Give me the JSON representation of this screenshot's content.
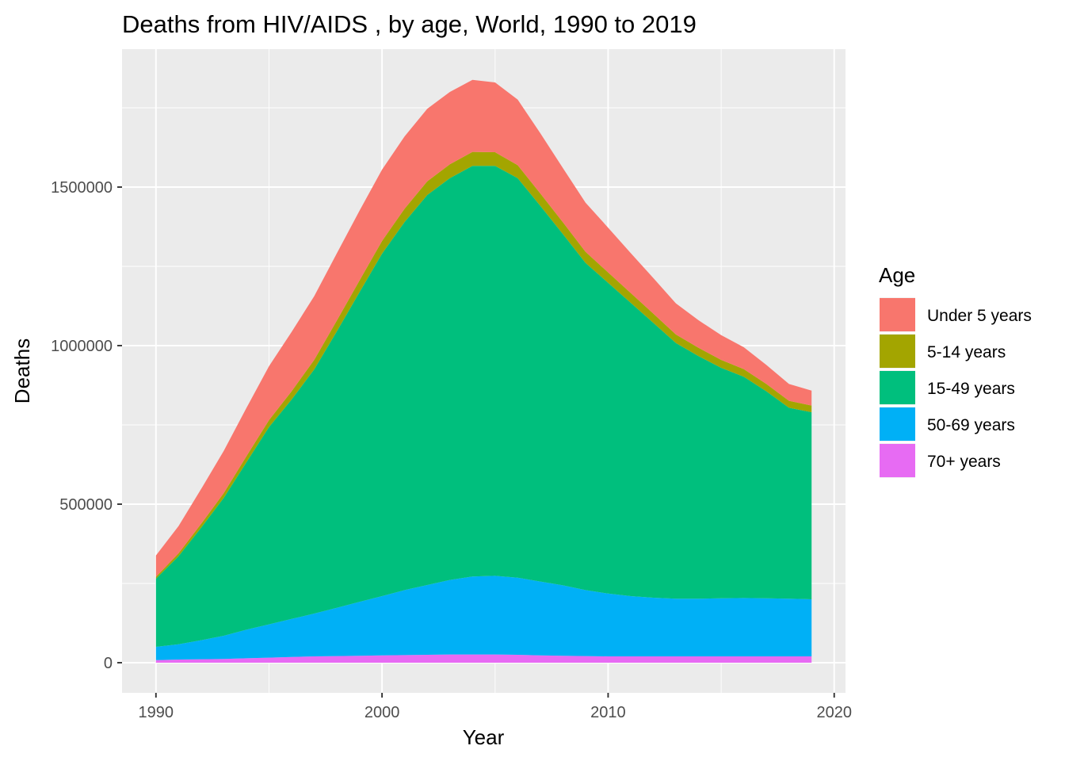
{
  "chart_data": {
    "type": "area",
    "stacked": true,
    "title": "Deaths from HIV/AIDS , by age, World, 1990 to 2019",
    "xlabel": "Year",
    "ylabel": "Deaths",
    "xlim": [
      1988.5,
      2020.5
    ],
    "ylim": [
      -95000,
      1935000
    ],
    "x_ticks": [
      1990,
      2000,
      2010,
      2020
    ],
    "y_ticks": [
      0,
      500000,
      1000000,
      1500000
    ],
    "x_tick_labels": [
      "1990",
      "2000",
      "2010",
      "2020"
    ],
    "y_tick_labels": [
      "0",
      "500000",
      "1000000",
      "1500000"
    ],
    "grid": true,
    "legend_position": "right",
    "legend_title": "Age",
    "x": [
      1990,
      1991,
      1992,
      1993,
      1994,
      1995,
      1996,
      1997,
      1998,
      1999,
      2000,
      2001,
      2002,
      2003,
      2004,
      2005,
      2006,
      2007,
      2008,
      2009,
      2010,
      2011,
      2012,
      2013,
      2014,
      2015,
      2016,
      2017,
      2018,
      2019
    ],
    "series": [
      {
        "name": "70+ years",
        "color": "#E76BF3",
        "values": [
          8000,
          10000,
          11000,
          12000,
          14000,
          16000,
          18000,
          20000,
          21000,
          22000,
          23000,
          24000,
          25000,
          26000,
          26000,
          26000,
          25000,
          23000,
          22000,
          21000,
          20000,
          20000,
          20000,
          20000,
          20000,
          20000,
          20000,
          20000,
          20000,
          20000
        ]
      },
      {
        "name": "50-69 years",
        "color": "#00B0F6",
        "values": [
          42000,
          48000,
          60000,
          73000,
          90000,
          105000,
          120000,
          135000,
          152000,
          170000,
          187000,
          205000,
          220000,
          235000,
          246000,
          248000,
          243000,
          233000,
          222000,
          208000,
          198000,
          190000,
          185000,
          182000,
          182000,
          183000,
          184000,
          183000,
          182000,
          180000
        ]
      },
      {
        "name": "15-49 years",
        "color": "#00BF7D",
        "values": [
          215000,
          278000,
          355000,
          435000,
          528000,
          622000,
          692000,
          770000,
          872000,
          976000,
          1080000,
          1161000,
          1230000,
          1267000,
          1295000,
          1293000,
          1260000,
          1185000,
          1108000,
          1032000,
          980000,
          925000,
          867000,
          806000,
          765000,
          727000,
          698000,
          653000,
          602000,
          590000
        ]
      },
      {
        "name": "5-14 years",
        "color": "#A3A500",
        "values": [
          6000,
          9000,
          12000,
          15000,
          19000,
          22000,
          26000,
          30000,
          34000,
          37000,
          40000,
          42000,
          43000,
          44000,
          44000,
          43000,
          41000,
          39000,
          37000,
          35000,
          33000,
          31000,
          29000,
          27000,
          26000,
          25000,
          24000,
          23000,
          22000,
          21000
        ]
      },
      {
        "name": "Under 5 years",
        "color": "#F8766D",
        "values": [
          67000,
          86000,
          110000,
          133000,
          152000,
          170000,
          187000,
          201000,
          212000,
          220000,
          225000,
          228000,
          229000,
          228000,
          227000,
          220000,
          207000,
          190000,
          171000,
          155000,
          141000,
          126000,
          112000,
          98000,
          87000,
          78000,
          69000,
          60000,
          53000,
          47000
        ]
      }
    ],
    "legend_order": [
      "Under 5 years",
      "5-14 years",
      "15-49 years",
      "50-69 years",
      "70+ years"
    ]
  }
}
